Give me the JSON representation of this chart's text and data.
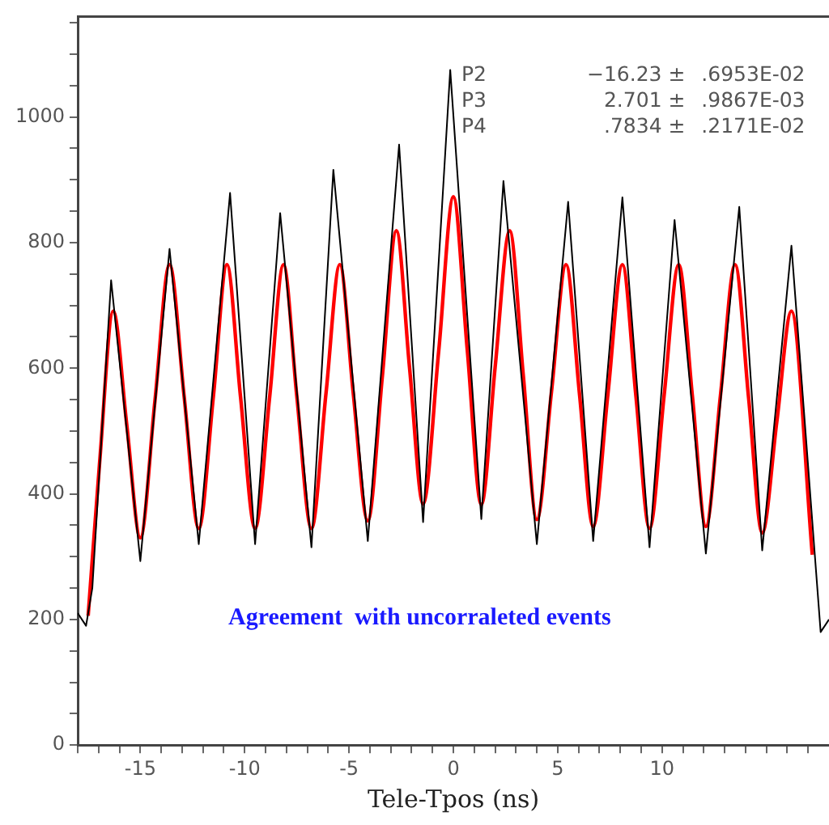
{
  "chart_data": {
    "type": "line",
    "xlabel": "Tele-Tpos (ns)",
    "xlim": [
      -18,
      18
    ],
    "ylim": [
      0,
      1160
    ],
    "xticks": [
      {
        "value": -18,
        "label": null
      },
      {
        "value": -17,
        "label": null
      },
      {
        "value": -16,
        "label": null
      },
      -15,
      {
        "value": -14,
        "label": null
      },
      {
        "value": -13,
        "label": null
      },
      {
        "value": -12,
        "label": null
      },
      {
        "value": -11,
        "label": null
      },
      -10,
      {
        "value": -9,
        "label": null
      },
      {
        "value": -8,
        "label": null
      },
      {
        "value": -7,
        "label": null
      },
      {
        "value": -6,
        "label": null
      },
      -5,
      {
        "value": -4,
        "label": null
      },
      {
        "value": -3,
        "label": null
      },
      {
        "value": -2,
        "label": null
      },
      {
        "value": -1,
        "label": null
      },
      0,
      {
        "value": 1,
        "label": null
      },
      {
        "value": 2,
        "label": null
      },
      {
        "value": 3,
        "label": null
      },
      {
        "value": 4,
        "label": null
      },
      5,
      {
        "value": 6,
        "label": null
      },
      {
        "value": 7,
        "label": null
      },
      {
        "value": 8,
        "label": null
      },
      {
        "value": 9,
        "label": null
      },
      10,
      {
        "value": 11,
        "label": null
      },
      {
        "value": 12,
        "label": null
      },
      {
        "value": 13,
        "label": null
      },
      {
        "value": 14,
        "label": null
      },
      {
        "value": 15,
        "label": null
      },
      {
        "value": 16,
        "label": null
      },
      {
        "value": 17,
        "label": null
      }
    ],
    "yticks": [
      0,
      {
        "value": 50,
        "label": null
      },
      {
        "value": 100,
        "label": null
      },
      {
        "value": 150,
        "label": null
      },
      200,
      {
        "value": 250,
        "label": null
      },
      {
        "value": 300,
        "label": null
      },
      {
        "value": 350,
        "label": null
      },
      400,
      {
        "value": 450,
        "label": null
      },
      {
        "value": 500,
        "label": null
      },
      {
        "value": 550,
        "label": null
      },
      600,
      {
        "value": 650,
        "label": null
      },
      {
        "value": 700,
        "label": null
      },
      {
        "value": 750,
        "label": null
      },
      800,
      {
        "value": 850,
        "label": null
      },
      {
        "value": 900,
        "label": null
      },
      {
        "value": 950,
        "label": null
      },
      1000,
      {
        "value": 1050,
        "label": null
      },
      {
        "value": 1100,
        "label": null
      },
      {
        "value": 1150,
        "label": null
      }
    ],
    "grid": false,
    "legend": false,
    "marker": "none",
    "line_style": "solid",
    "series": [
      {
        "color": "#000000",
        "x": [
          -18,
          -17.6,
          -17.3,
          -16.4,
          -15,
          -13.6,
          -12.2,
          -10.7,
          -9.5,
          -8.3,
          -6.8,
          -5.75,
          -4.1,
          -2.6,
          -1.45,
          -0.15,
          1.34,
          2.4,
          4.0,
          5.5,
          6.7,
          8.1,
          9.4,
          10.6,
          12.1,
          13.7,
          14.8,
          16.2,
          17.6,
          18
        ],
        "values": [
          210,
          190,
          250,
          740,
          293,
          790,
          320,
          879,
          320,
          847,
          315,
          916,
          325,
          956,
          355,
          1075,
          360,
          898,
          320,
          865,
          325,
          872,
          315,
          836,
          305,
          857,
          310,
          795,
          180,
          200
        ]
      },
      {
        "color": "#ff0000",
        "x": [
          -17.5,
          -16.95,
          -16.3,
          -15.65,
          -15.0,
          -14.3,
          -13.6,
          -12.9,
          -12.2,
          -11.5,
          -10.85,
          -10.2,
          -9.5,
          -8.8,
          -8.14,
          -7.5,
          -6.8,
          -6.1,
          -5.44,
          -4.8,
          -4.1,
          -3.4,
          -2.73,
          -2.1,
          -1.45,
          -0.7,
          0,
          0.67,
          1.34,
          2.0,
          2.7,
          3.35,
          4.0,
          4.7,
          5.4,
          6.05,
          6.7,
          7.4,
          8.1,
          8.75,
          9.4,
          10.1,
          10.8,
          11.45,
          12.1,
          12.8,
          13.5,
          14.15,
          14.8,
          15.5,
          16.2,
          17.2
        ],
        "values": [
          206,
          450,
          691,
          510,
          330,
          548,
          765,
          555,
          345,
          555,
          765,
          555,
          345,
          555,
          765,
          555,
          345,
          561,
          765,
          561,
          357,
          588,
          819,
          601,
          384,
          628,
          873,
          628,
          383,
          601,
          819,
          589,
          359,
          562,
          765,
          557,
          348,
          557,
          765,
          555,
          345,
          557,
          765,
          557,
          348,
          557,
          765,
          552,
          338,
          515,
          691,
          303
        ]
      }
    ],
    "annotations": [
      "P2",
      "−16.23 ±",
      "  .6953E-02",
      "P3",
      "2.701 ±",
      "  .9867E-03",
      "P4",
      ".7834 ±",
      "  .2171E-02",
      "Agreement  with uncorraleted events"
    ]
  }
}
